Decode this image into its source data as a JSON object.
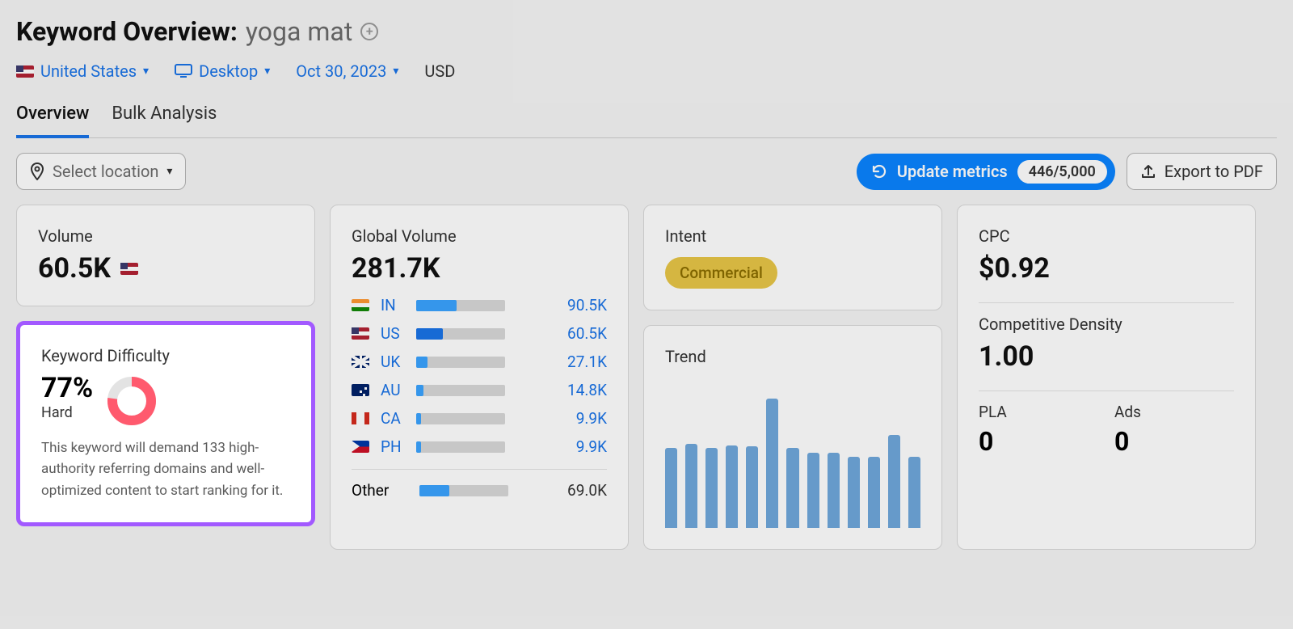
{
  "header": {
    "title_label": "Keyword Overview:",
    "keyword": "yoga mat"
  },
  "filters": {
    "country": "United States",
    "device": "Desktop",
    "date": "Oct 30, 2023",
    "currency": "USD"
  },
  "tabs": {
    "overview": "Overview",
    "bulk": "Bulk Analysis"
  },
  "toolbar": {
    "select_location": "Select location",
    "update_metrics": "Update metrics",
    "quota": "446/5,000",
    "export": "Export to PDF"
  },
  "volume": {
    "label": "Volume",
    "value": "60.5K"
  },
  "kd": {
    "label": "Keyword Difficulty",
    "percent": "77%",
    "level": "Hard",
    "description": "This keyword will demand 133 high-authority referring domains and well-optimized content to start ranking for it.",
    "donut": {
      "value": 77,
      "color": "#ff5a6e",
      "track": "#e3e3e3",
      "highlight_border": "#a259ff"
    }
  },
  "global_volume": {
    "label": "Global Volume",
    "value": "281.7K",
    "rows": [
      {
        "code": "IN",
        "flag": "in",
        "value": "90.5K",
        "bar_pct": 45,
        "bar_color": "#3aa3ff"
      },
      {
        "code": "US",
        "flag": "us",
        "value": "60.5K",
        "bar_pct": 30,
        "bar_color": "#1a73e8"
      },
      {
        "code": "UK",
        "flag": "uk",
        "value": "27.1K",
        "bar_pct": 13,
        "bar_color": "#3aa3ff"
      },
      {
        "code": "AU",
        "flag": "au",
        "value": "14.8K",
        "bar_pct": 8,
        "bar_color": "#3aa3ff"
      },
      {
        "code": "CA",
        "flag": "ca",
        "value": "9.9K",
        "bar_pct": 5,
        "bar_color": "#3aa3ff"
      },
      {
        "code": "PH",
        "flag": "ph",
        "value": "9.9K",
        "bar_pct": 5,
        "bar_color": "#3aa3ff"
      }
    ],
    "other": {
      "label": "Other",
      "value": "69.0K",
      "bar_pct": 34,
      "bar_color": "#3aa3ff"
    }
  },
  "intent": {
    "label": "Intent",
    "value": "Commercial",
    "pill_bg": "#e8c647",
    "pill_fg": "#8a6d00"
  },
  "trend": {
    "label": "Trend",
    "bars": [
      62,
      65,
      62,
      64,
      63,
      100,
      62,
      58,
      58,
      55,
      55,
      72,
      55
    ],
    "bar_color": "#6fa8dc"
  },
  "cpc": {
    "label": "CPC",
    "value": "$0.92",
    "cd_label": "Competitive Density",
    "cd_value": "1.00",
    "pla_label": "PLA",
    "pla_value": "0",
    "ads_label": "Ads",
    "ads_value": "0"
  },
  "colors": {
    "link": "#1a73e8",
    "primary_btn": "#0a84ff"
  }
}
